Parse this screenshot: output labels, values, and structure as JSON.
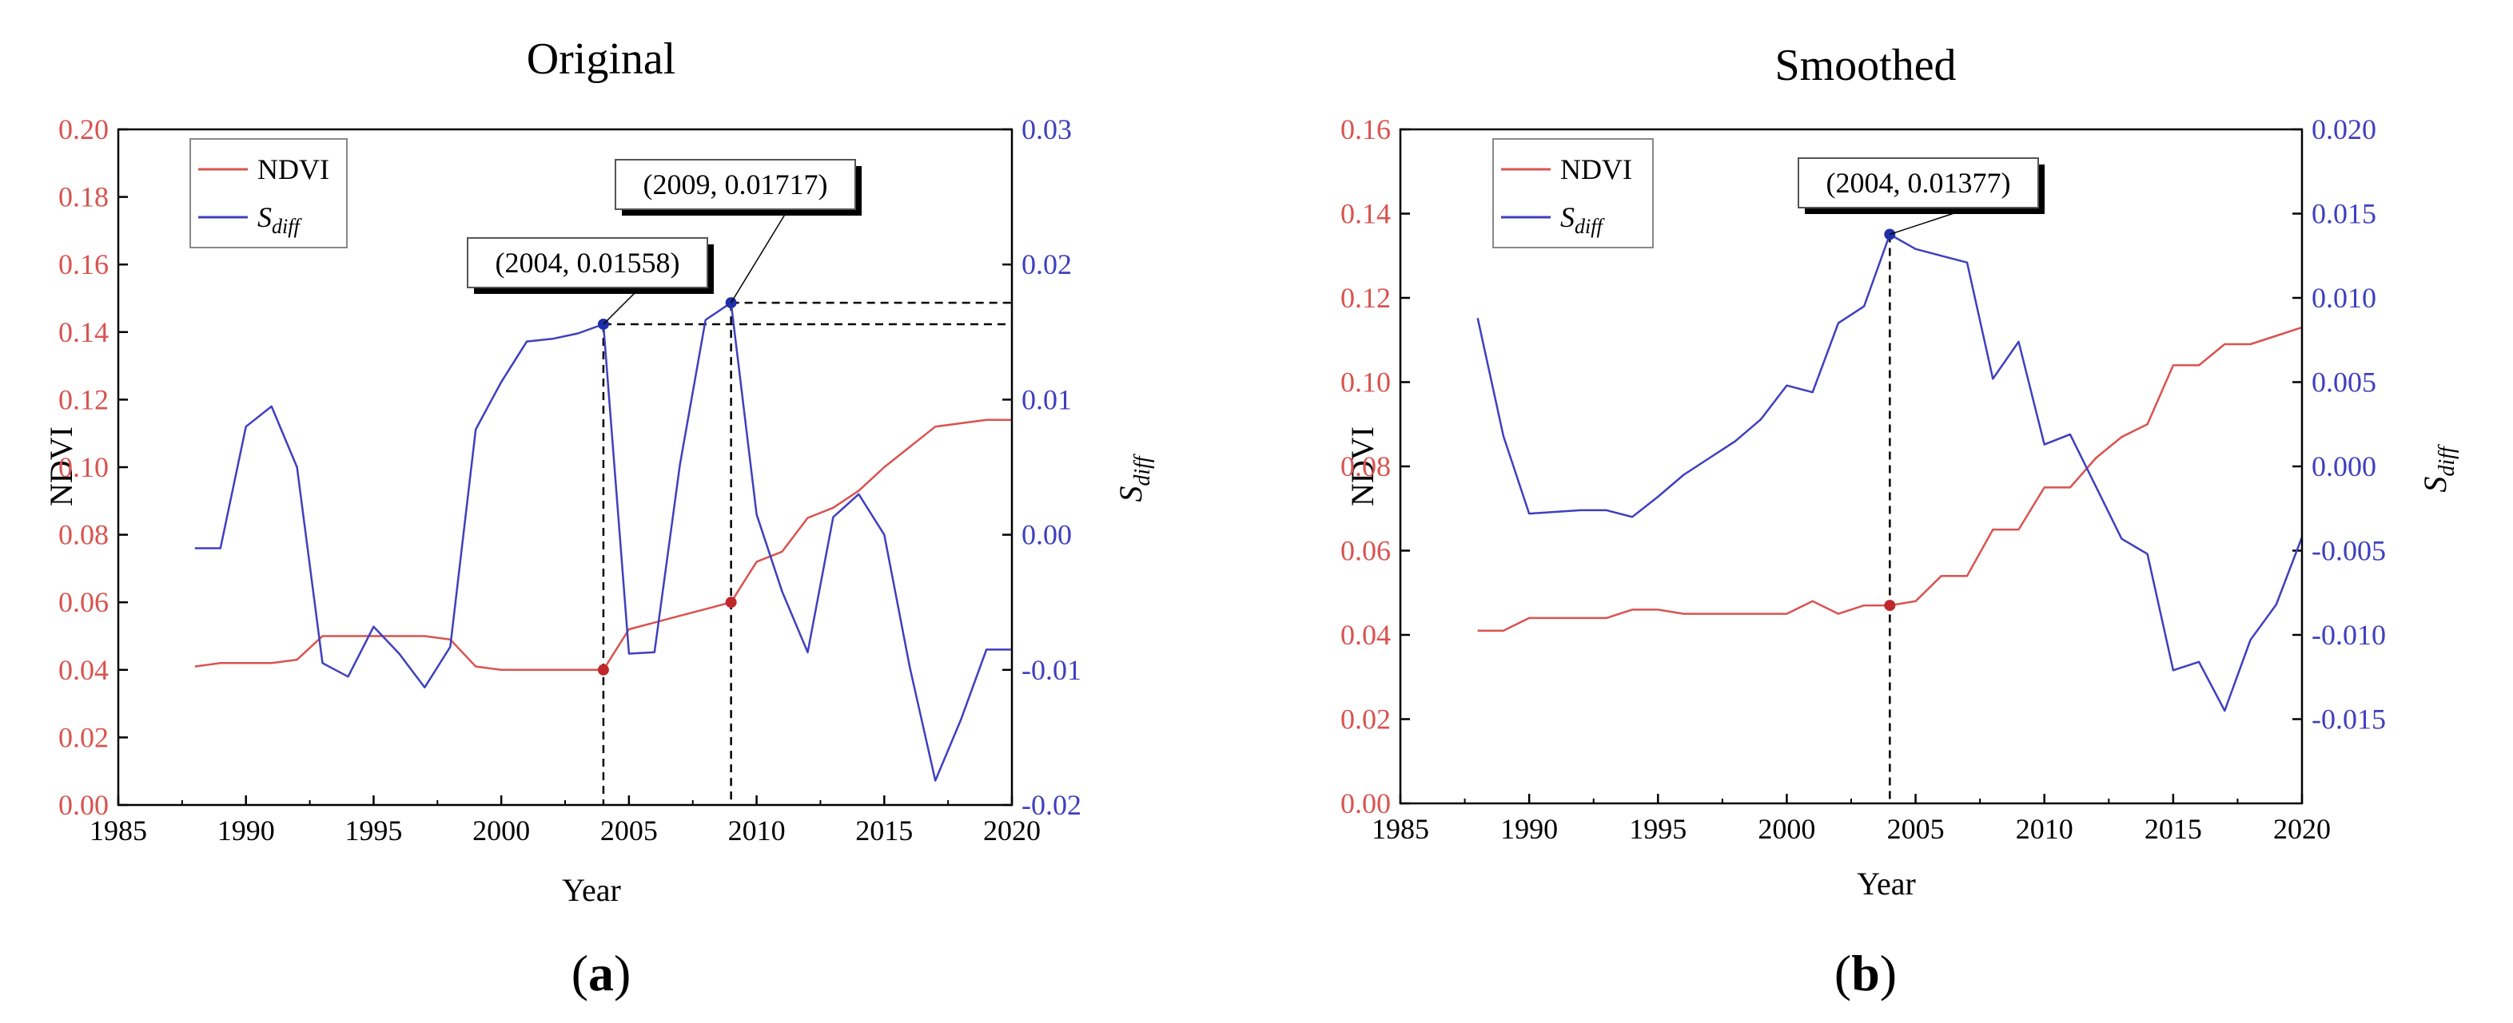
{
  "chart_data": [
    {
      "type": "line",
      "title": "Original",
      "panel_label": "a",
      "xlabel": "Year",
      "ylabel": "NDVI",
      "y2label_main": "S",
      "y2label_sub": "diff",
      "xlim": [
        1985,
        2020
      ],
      "ylim": [
        0,
        0.2
      ],
      "y2lim": [
        -0.02,
        0.03
      ],
      "x_ticks": [
        1985,
        1990,
        1995,
        2000,
        2005,
        2010,
        2015,
        2020
      ],
      "y_ticks": [
        "0.00",
        "0.02",
        "0.04",
        "0.06",
        "0.08",
        "0.10",
        "0.12",
        "0.14",
        "0.16",
        "0.18",
        "0.20"
      ],
      "y2_ticks": [
        "-0.02",
        "-0.01",
        "0.00",
        "0.01",
        "0.02",
        "0.03"
      ],
      "x": [
        1988,
        1989,
        1990,
        1991,
        1992,
        1993,
        1994,
        1995,
        1996,
        1997,
        1998,
        1999,
        2000,
        2001,
        2002,
        2003,
        2004,
        2005,
        2006,
        2007,
        2008,
        2009,
        2010,
        2011,
        2012,
        2013,
        2014,
        2015,
        2016,
        2017,
        2018,
        2019,
        2020
      ],
      "series": [
        {
          "name": "NDVI",
          "axis": "left",
          "color": "#d9534f",
          "values": [
            0.041,
            0.042,
            0.042,
            0.042,
            0.043,
            0.05,
            0.05,
            0.05,
            0.05,
            0.05,
            0.049,
            0.041,
            0.04,
            0.04,
            0.04,
            0.04,
            0.04,
            0.052,
            0.054,
            0.056,
            0.058,
            0.06,
            0.072,
            0.075,
            0.085,
            0.088,
            0.093,
            0.1,
            0.106,
            0.112,
            0.113,
            0.114,
            0.114
          ]
        },
        {
          "name": "S_diff",
          "axis": "right",
          "color": "#3f3fbf",
          "values": [
            -0.001,
            -0.001,
            0.008,
            0.0095,
            0.005,
            -0.0095,
            -0.0105,
            -0.0068,
            -0.0088,
            -0.0113,
            -0.0083,
            0.0078,
            0.0113,
            0.0143,
            0.0145,
            0.0149,
            0.01558,
            -0.0088,
            -0.0087,
            0.0052,
            0.0159,
            0.01717,
            0.0015,
            -0.0042,
            -0.0087,
            0.0013,
            0.003,
            0.0,
            -0.0098,
            -0.0182,
            -0.0137,
            -0.0085,
            -0.0085
          ]
        }
      ],
      "legend": {
        "position": "top-left",
        "entries": [
          "NDVI",
          "S_diff"
        ]
      },
      "annotations": [
        {
          "label": "(2004, 0.01558)",
          "x": 2004,
          "y2": 0.01558,
          "ndvi": 0.04
        },
        {
          "label": "(2009, 0.01717)",
          "x": 2009,
          "y2": 0.01717,
          "ndvi": 0.06
        }
      ]
    },
    {
      "type": "line",
      "title": "Smoothed",
      "panel_label": "b",
      "xlabel": "Year",
      "ylabel": "NDVI",
      "y2label_main": "S",
      "y2label_sub": "diff",
      "xlim": [
        1985,
        2020
      ],
      "ylim": [
        0,
        0.16
      ],
      "y2lim": [
        -0.02,
        0.02
      ],
      "x_ticks": [
        1985,
        1990,
        1995,
        2000,
        2005,
        2010,
        2015,
        2020
      ],
      "y_ticks": [
        "0.00",
        "0.02",
        "0.04",
        "0.06",
        "0.08",
        "0.10",
        "0.12",
        "0.14",
        "0.16"
      ],
      "y2_ticks": [
        "-0.015",
        "-0.010",
        "-0.005",
        "0.000",
        "0.005",
        "0.010",
        "0.015",
        "0.020"
      ],
      "y2_tick_values": [
        -0.015,
        -0.01,
        -0.005,
        0.0,
        0.005,
        0.01,
        0.015,
        0.02
      ],
      "x": [
        1988,
        1989,
        1990,
        1991,
        1992,
        1993,
        1994,
        1995,
        1996,
        1997,
        1998,
        1999,
        2000,
        2001,
        2002,
        2003,
        2004,
        2005,
        2006,
        2007,
        2008,
        2009,
        2010,
        2011,
        2012,
        2013,
        2014,
        2015,
        2016,
        2017,
        2018,
        2019,
        2020
      ],
      "series": [
        {
          "name": "NDVI",
          "axis": "left",
          "color": "#d9534f",
          "values": [
            0.041,
            0.041,
            0.044,
            0.044,
            0.044,
            0.044,
            0.046,
            0.046,
            0.045,
            0.045,
            0.045,
            0.045,
            0.045,
            0.048,
            0.045,
            0.047,
            0.047,
            0.048,
            0.054,
            0.054,
            0.065,
            0.065,
            0.075,
            0.075,
            0.082,
            0.087,
            0.09,
            0.104,
            0.104,
            0.109,
            0.109,
            0.111,
            0.113
          ]
        },
        {
          "name": "S_diff",
          "axis": "right",
          "color": "#3f3fbf",
          "values": [
            0.0088,
            0.0018,
            -0.0028,
            -0.0027,
            -0.0026,
            -0.0026,
            -0.003,
            -0.0018,
            -0.0005,
            0.0005,
            0.0015,
            0.0028,
            0.0048,
            0.0044,
            0.0085,
            0.0095,
            0.01377,
            0.0129,
            0.0125,
            0.0121,
            0.0052,
            0.0074,
            0.0013,
            0.0019,
            -0.0012,
            -0.0043,
            -0.0052,
            -0.0121,
            -0.0116,
            -0.0145,
            -0.0103,
            -0.0082,
            -0.0042
          ]
        }
      ],
      "legend": {
        "position": "top-left",
        "entries": [
          "NDVI",
          "S_diff"
        ]
      },
      "annotations": [
        {
          "label": "(2004, 0.01377)",
          "x": 2004,
          "y2": 0.01377,
          "ndvi": 0.047
        }
      ]
    }
  ]
}
